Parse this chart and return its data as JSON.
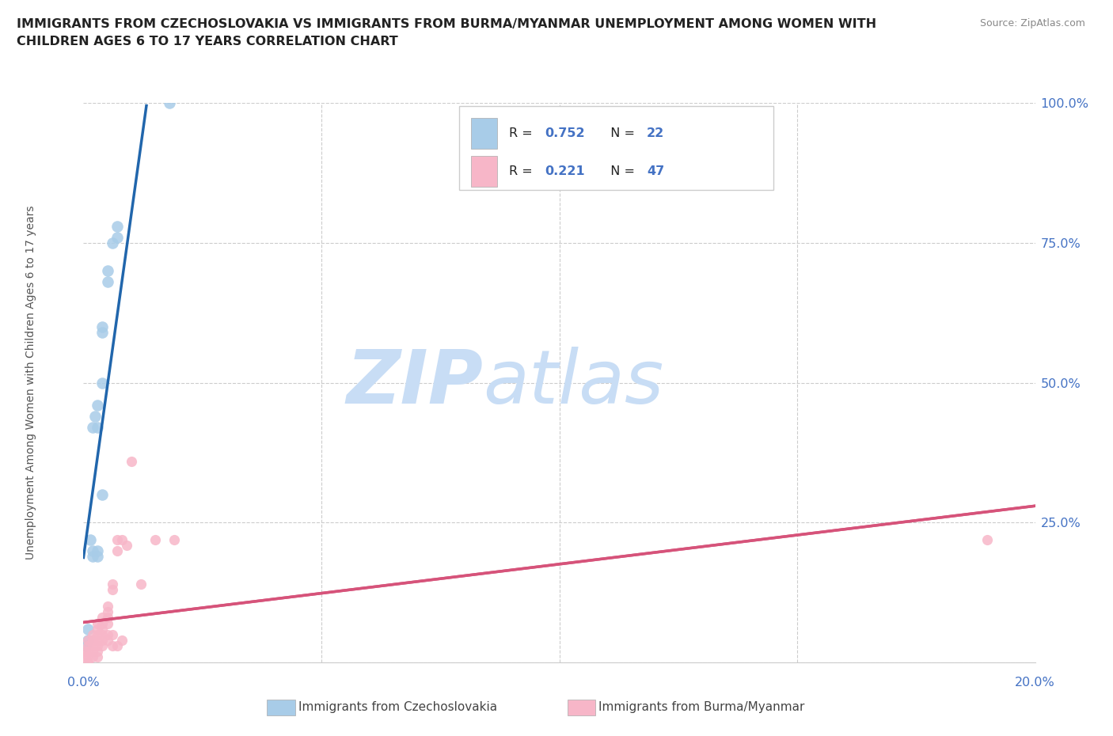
{
  "title": "IMMIGRANTS FROM CZECHOSLOVAKIA VS IMMIGRANTS FROM BURMA/MYANMAR UNEMPLOYMENT AMONG WOMEN WITH\nCHILDREN AGES 6 TO 17 YEARS CORRELATION CHART",
  "source": "Source: ZipAtlas.com",
  "ylabel": "Unemployment Among Women with Children Ages 6 to 17 years",
  "xmin": 0.0,
  "xmax": 0.2,
  "ymin": 0.0,
  "ymax": 1.0,
  "yticks": [
    0.0,
    0.25,
    0.5,
    0.75,
    1.0
  ],
  "ytick_labels": [
    "",
    "25.0%",
    "50.0%",
    "75.0%",
    "100.0%"
  ],
  "legend_R1": "0.752",
  "legend_N1": "22",
  "legend_R2": "0.221",
  "legend_N2": "47",
  "legend_label1": "Immigrants from Czechoslovakia",
  "legend_label2": "Immigrants from Burma/Myanmar",
  "watermark_zip": "ZIP",
  "watermark_atlas": "atlas",
  "watermark_color": "#c8ddf5",
  "blue_fill": "#a8cce8",
  "blue_line": "#2166ac",
  "pink_fill": "#f7b6c8",
  "pink_line": "#d6537a",
  "background_color": "#ffffff",
  "grid_color": "#cccccc",
  "axis_color": "#4472c4",
  "title_color": "#222222",
  "czecho_x": [
    0.0005,
    0.001,
    0.001,
    0.0015,
    0.002,
    0.002,
    0.002,
    0.0025,
    0.003,
    0.003,
    0.003,
    0.003,
    0.004,
    0.004,
    0.004,
    0.004,
    0.005,
    0.005,
    0.006,
    0.007,
    0.007,
    0.018
  ],
  "czecho_y": [
    0.03,
    0.06,
    0.04,
    0.22,
    0.2,
    0.19,
    0.42,
    0.44,
    0.42,
    0.2,
    0.19,
    0.46,
    0.5,
    0.6,
    0.59,
    0.3,
    0.7,
    0.68,
    0.75,
    0.78,
    0.76,
    1.0
  ],
  "burma_x": [
    0.0004,
    0.0005,
    0.001,
    0.001,
    0.001,
    0.001,
    0.001,
    0.002,
    0.002,
    0.002,
    0.002,
    0.002,
    0.002,
    0.003,
    0.003,
    0.003,
    0.003,
    0.003,
    0.003,
    0.003,
    0.004,
    0.004,
    0.004,
    0.004,
    0.004,
    0.004,
    0.005,
    0.005,
    0.005,
    0.005,
    0.005,
    0.005,
    0.006,
    0.006,
    0.006,
    0.006,
    0.007,
    0.007,
    0.007,
    0.008,
    0.008,
    0.009,
    0.01,
    0.012,
    0.015,
    0.019,
    0.19
  ],
  "burma_y": [
    0.02,
    0.01,
    0.04,
    0.03,
    0.02,
    0.01,
    0.0,
    0.05,
    0.04,
    0.04,
    0.03,
    0.02,
    0.01,
    0.07,
    0.06,
    0.05,
    0.04,
    0.03,
    0.02,
    0.01,
    0.08,
    0.07,
    0.06,
    0.05,
    0.04,
    0.03,
    0.1,
    0.09,
    0.08,
    0.07,
    0.05,
    0.04,
    0.14,
    0.13,
    0.05,
    0.03,
    0.22,
    0.2,
    0.03,
    0.22,
    0.04,
    0.21,
    0.36,
    0.14,
    0.22,
    0.22,
    0.22
  ]
}
